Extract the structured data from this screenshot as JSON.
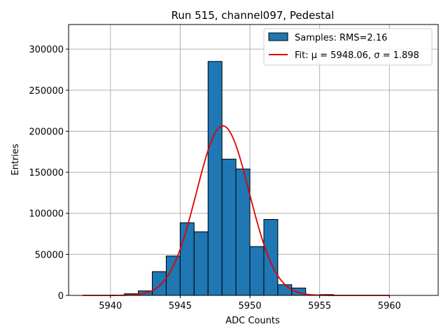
{
  "chart_data": {
    "type": "bar",
    "title": "Run 515, channel097, Pedestal",
    "xlabel": "ADC Counts",
    "ylabel": "Entries",
    "xlim": [
      5937,
      5963.5
    ],
    "ylim": [
      0,
      330000
    ],
    "xticks": [
      5940,
      5945,
      5950,
      5955,
      5960
    ],
    "yticks": [
      0,
      50000,
      100000,
      150000,
      200000,
      250000,
      300000
    ],
    "grid": true,
    "legend_position": "top-right",
    "histogram": {
      "name": "Samples: RMS=2.16",
      "color": "#1f77b4",
      "edge_color": "#000000",
      "bin_edges": [
        5938,
        5939,
        5940,
        5941,
        5942,
        5943,
        5944,
        5945,
        5946,
        5947,
        5948,
        5949,
        5950,
        5951,
        5952,
        5953,
        5954,
        5955,
        5956,
        5957,
        5958,
        5959,
        5960,
        5961,
        5962
      ],
      "counts": [
        0,
        0,
        0,
        2000,
        5500,
        29000,
        48000,
        88500,
        77500,
        285000,
        166000,
        154000,
        59500,
        92500,
        13000,
        9000,
        0,
        1000,
        0,
        0,
        0,
        0,
        0,
        0
      ]
    },
    "fit": {
      "name": "Fit: μ = 5948.06, σ = 1.898",
      "color": "#e00000",
      "mu": 5948.06,
      "sigma": 1.898,
      "amplitude": 206500,
      "x_range": [
        5938,
        5960
      ]
    }
  }
}
